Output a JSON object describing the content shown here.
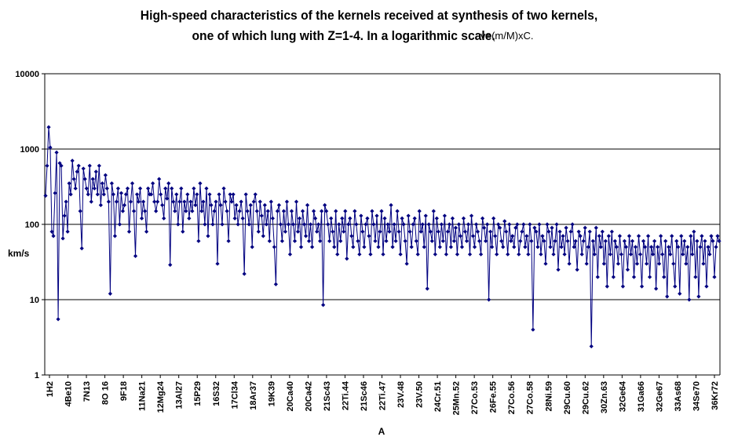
{
  "chart_data": {
    "type": "line",
    "title_line1": "High-speed characteristics of the kernels received at synthesis of two kernels,",
    "title_line2": "one of which lung with Z=1-4. In a logarithmic scale.",
    "formula": "v=(m/M)xC.",
    "xlabel": "A",
    "ylabel": "km/s",
    "y_scale": "log",
    "ylim": [
      1,
      10000
    ],
    "y_ticks": [
      "1",
      "10",
      "100",
      "1000",
      "10000"
    ],
    "grid": "horizontal major lines",
    "legend": "none",
    "colors": {
      "series": "#000080",
      "text": "#000000",
      "grid": "#000000"
    },
    "x_tick_labels": [
      "1H2",
      "4Be10",
      "7N13",
      "8O 16",
      "9F18",
      "11Na21",
      "12Mg24",
      "13Al27",
      "15P29",
      "16S32",
      "17Cl34",
      "18Ar37",
      "19K39",
      "20Ca40",
      "20Ca42",
      "21Sc43",
      "22Ti.44",
      "21Sc46",
      "22Ti.47",
      "23V.48",
      "23V.50",
      "24Cr.51",
      "25Mn.52",
      "27Co.53",
      "26Fe.55",
      "27Co.56",
      "27Co.58",
      "28Ni.59",
      "29Cu.60",
      "29Cu.62",
      "30Zn.63",
      "32Ge64",
      "31Ga66",
      "32Ge67",
      "33As68",
      "34Se70",
      "36Kr72"
    ],
    "series": [
      {
        "values": [
          240,
          600,
          1950,
          1050,
          80,
          70,
          260,
          900,
          5.5,
          650,
          600,
          65,
          130,
          200,
          80,
          350,
          250,
          700,
          400,
          300,
          500,
          600,
          150,
          48,
          550,
          400,
          300,
          250,
          600,
          200,
          400,
          300,
          500,
          250,
          600,
          180,
          350,
          250,
          450,
          300,
          200,
          12,
          350,
          250,
          70,
          200,
          300,
          100,
          260,
          150,
          180,
          250,
          300,
          80,
          200,
          350,
          150,
          38,
          250,
          200,
          300,
          120,
          200,
          150,
          80,
          300,
          250,
          250,
          350,
          200,
          150,
          200,
          400,
          250,
          180,
          120,
          300,
          220,
          350,
          29,
          300,
          200,
          150,
          250,
          100,
          200,
          300,
          80,
          200,
          150,
          250,
          120,
          200,
          150,
          300,
          180,
          250,
          60,
          350,
          150,
          200,
          100,
          300,
          70,
          250,
          180,
          100,
          150,
          200,
          30,
          250,
          180,
          100,
          300,
          200,
          150,
          60,
          250,
          200,
          250,
          120,
          180,
          100,
          150,
          200,
          120,
          22,
          250,
          150,
          100,
          180,
          50,
          200,
          250,
          150,
          80,
          200,
          130,
          70,
          180,
          100,
          150,
          60,
          200,
          120,
          50,
          16,
          150,
          180,
          100,
          60,
          150,
          80,
          200,
          100,
          40,
          150,
          100,
          60,
          200,
          80,
          120,
          50,
          150,
          100,
          70,
          180,
          60,
          100,
          50,
          150,
          120,
          80,
          100,
          60,
          150,
          8.5,
          180,
          150,
          100,
          60,
          120,
          80,
          50,
          150,
          40,
          100,
          60,
          120,
          80,
          150,
          35,
          100,
          120,
          70,
          50,
          150,
          100,
          60,
          40,
          130,
          80,
          50,
          100,
          120,
          70,
          40,
          150,
          100,
          60,
          130,
          50,
          80,
          150,
          40,
          120,
          60,
          100,
          80,
          180,
          50,
          100,
          60,
          150,
          80,
          40,
          120,
          100,
          60,
          30,
          130,
          80,
          50,
          100,
          120,
          60,
          40,
          150,
          80,
          100,
          50,
          130,
          14,
          100,
          80,
          60,
          150,
          40,
          120,
          80,
          50,
          100,
          60,
          130,
          40,
          80,
          100,
          50,
          120,
          60,
          90,
          40,
          100,
          70,
          50,
          120,
          80,
          60,
          100,
          40,
          130,
          70,
          50,
          100,
          80,
          60,
          40,
          120,
          90,
          60,
          100,
          10,
          80,
          50,
          120,
          70,
          40,
          100,
          90,
          60,
          50,
          110,
          80,
          40,
          100,
          60,
          70,
          50,
          90,
          100,
          40,
          60,
          80,
          100,
          50,
          70,
          40,
          100,
          60,
          4,
          90,
          80,
          50,
          100,
          40,
          70,
          60,
          30,
          100,
          80,
          50,
          90,
          40,
          60,
          100,
          25,
          80,
          50,
          70,
          40,
          90,
          60,
          30,
          80,
          100,
          50,
          60,
          25,
          80,
          70,
          40,
          60,
          90,
          30,
          50,
          80,
          2.4,
          60,
          40,
          90,
          20,
          70,
          50,
          80,
          30,
          60,
          15,
          70,
          40,
          80,
          20,
          60,
          50,
          30,
          70,
          40,
          15,
          60,
          50,
          25,
          70,
          40,
          60,
          20,
          50,
          30,
          70,
          40,
          15,
          60,
          50,
          30,
          70,
          20,
          50,
          40,
          60,
          14,
          50,
          30,
          70,
          40,
          20,
          60,
          11,
          50,
          40,
          70,
          30,
          15,
          60,
          50,
          12,
          70,
          40,
          60,
          30,
          50,
          10,
          70,
          40,
          80,
          20,
          60,
          11,
          50,
          70,
          30,
          60,
          15,
          50,
          40,
          70,
          60,
          20,
          50,
          70,
          60
        ]
      }
    ]
  }
}
